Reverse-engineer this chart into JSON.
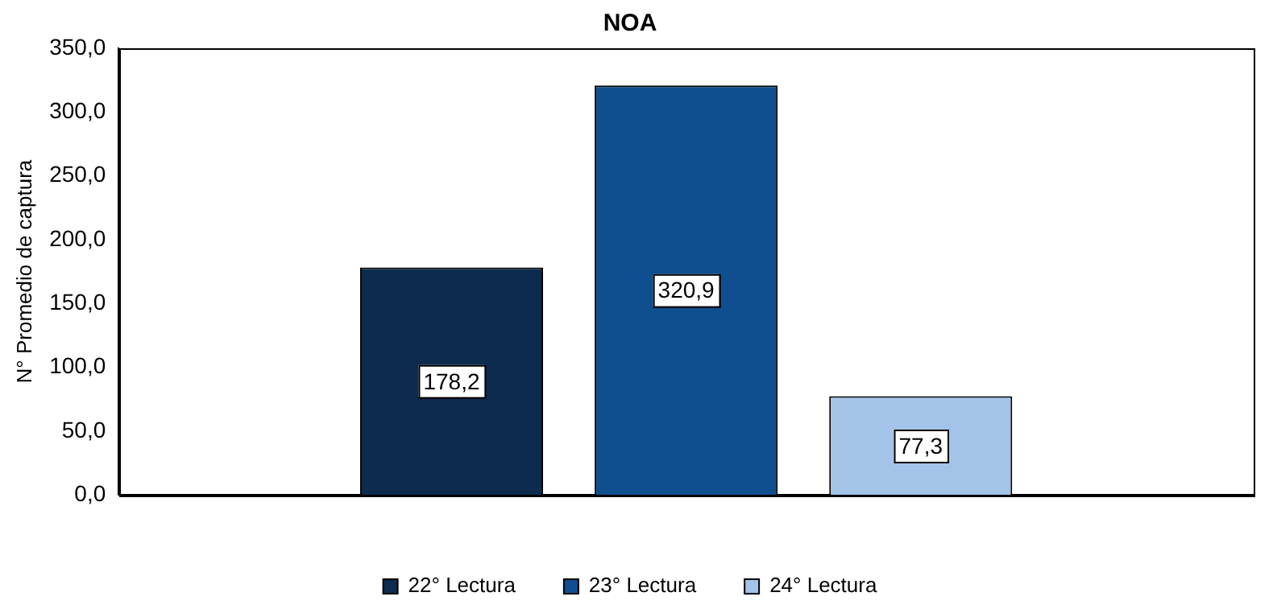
{
  "chart_data": {
    "type": "bar",
    "title": "NOA",
    "ylabel": "N° Promedio de captura",
    "categories": [
      null
    ],
    "ylim": [
      0,
      350
    ],
    "yticks": [
      {
        "value": 0,
        "label": "0,0"
      },
      {
        "value": 50,
        "label": "50,0"
      },
      {
        "value": 100,
        "label": "100,0"
      },
      {
        "value": 150,
        "label": "150,0"
      },
      {
        "value": 200,
        "label": "200,0"
      },
      {
        "value": 250,
        "label": "250,0"
      },
      {
        "value": 300,
        "label": "300,0"
      },
      {
        "value": 350,
        "label": "350,0"
      }
    ],
    "series": [
      {
        "name": "22° Lectura",
        "color": "#0d2b4e",
        "values": [
          178.2
        ],
        "value_labels": [
          "178,2"
        ]
      },
      {
        "name": "23° Lectura",
        "color": "#0f4f8f",
        "values": [
          320.9
        ],
        "value_labels": [
          "320,9"
        ]
      },
      {
        "name": "24° Lectura",
        "color": "#a3c4e8",
        "values": [
          77.3
        ],
        "value_labels": [
          "77,3"
        ]
      }
    ],
    "grid": false,
    "legend": "bottom"
  }
}
